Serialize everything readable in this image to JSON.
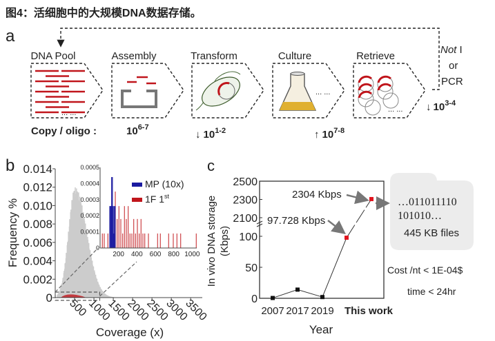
{
  "figure_title": "图4：活细胞中的大规模DNA数据存储。",
  "panel_a": {
    "label": "a",
    "steps": [
      "DNA Pool",
      "Assembly",
      "Transform",
      "Culture",
      "Retrieve"
    ],
    "loop_label": {
      "italic": "Not",
      "rest": " I",
      "line2": "or",
      "line3": "PCR"
    },
    "copy_label": "Copy / oligo :",
    "copies": [
      {
        "arrow": "",
        "base": "10",
        "exp": "6-7"
      },
      {
        "arrow": "↓",
        "base": "10",
        "exp": "1-2"
      },
      {
        "arrow": "↑",
        "base": "10",
        "exp": "7-8"
      },
      {
        "arrow": "↓",
        "base": "10",
        "exp": "3-4"
      }
    ],
    "ellipsis": "... ...",
    "colors": {
      "dna": "#c0151b",
      "flask": "#e0b030"
    }
  },
  "chart_data": [
    {
      "panel": "b",
      "type": "bar",
      "xlabel": "Coverage (x)",
      "ylabel": "Frequency %",
      "xticks": [
        "500",
        "1000",
        "1500",
        "2000",
        "2500",
        "3000",
        "3500"
      ],
      "yticks": [
        "0",
        "0.002",
        "0.004",
        "0.006",
        "0.008",
        "0.010",
        "0.012",
        "0.014"
      ],
      "xlim": [
        0,
        3800
      ],
      "ylim": [
        0,
        0.014
      ],
      "main_histogram": {
        "peak_x": 500,
        "peak_y": 0.012,
        "color": "#cccccc"
      },
      "inset": {
        "xticks": [
          "200",
          "400",
          "600",
          "800",
          "1000"
        ],
        "yticks": [
          "0",
          "0.0001",
          "0.0002",
          "0.0003",
          "0.0004",
          "0.0005"
        ],
        "xlim": [
          0,
          1050
        ],
        "ylim": [
          0,
          0.0005
        ],
        "series": [
          {
            "name": "MP (10x)",
            "color": "#1a1aa0",
            "x": [
              100,
              110,
              120,
              130,
              140,
              150
            ],
            "y": [
              0.00026,
              0.00026,
              0.00044,
              0.00026,
              9e-05,
              0.00026
            ]
          },
          {
            "name": "1F 1",
            "sup": "st",
            "color": "#c0151b",
            "x": [
              20,
              40,
              80,
              160,
              180,
              200,
              220,
              240,
              260,
              280,
              300,
              320,
              340,
              360,
              380,
              400,
              420,
              440,
              460,
              480,
              520,
              620,
              650,
              740,
              790,
              830,
              870,
              1040
            ],
            "y": [
              9e-05,
              9e-05,
              9e-05,
              0.00035,
              0.00018,
              0.00026,
              0.00018,
              9e-05,
              0.00026,
              0.00018,
              0.00026,
              9e-05,
              9e-05,
              0.00018,
              9e-05,
              0.00018,
              9e-05,
              0.00018,
              9e-05,
              9e-05,
              9e-05,
              9e-05,
              9e-05,
              9e-05,
              9e-05,
              9e-05,
              9e-05,
              9e-05
            ]
          }
        ]
      }
    },
    {
      "panel": "c",
      "type": "line",
      "xlabel": "Year",
      "ylabel": "In vivo DNA storage",
      "ylabel2": "(Kbps)",
      "categories": [
        "2007",
        "2017",
        "2019",
        "This work",
        ""
      ],
      "values": [
        0.5,
        14,
        2,
        97.728,
        2304
      ],
      "yticks": [
        "0",
        "50",
        "100",
        "2100",
        "2300",
        "2500"
      ],
      "axis_break": true,
      "annotations": [
        "97.728 Kbps",
        "2304 Kbps"
      ],
      "highlight_color": "#e0141e"
    }
  ],
  "panel_b_label": "b",
  "panel_c_label": "c",
  "file_box": {
    "line1": "…011011110",
    "line2": "101010…",
    "line3": "445 KB files"
  },
  "cost_text": "Cost /nt  < 1E-04$",
  "time_text": "time < 24hr"
}
